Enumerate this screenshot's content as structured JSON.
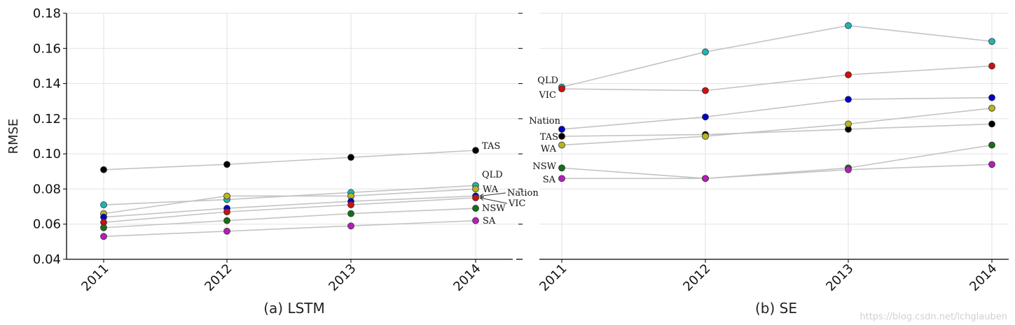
{
  "chart_data": [
    {
      "type": "line",
      "caption": "(a) LSTM",
      "ylabel": "RMSE",
      "categories": [
        "2011",
        "2012",
        "2013",
        "2014"
      ],
      "ylim": [
        0.04,
        0.18
      ],
      "yticks": [
        0.04,
        0.06,
        0.08,
        0.1,
        0.12,
        0.14,
        0.16,
        0.18
      ],
      "ytick_labels": [
        "0.04",
        "0.06",
        "0.08",
        "0.10",
        "0.12",
        "0.14",
        "0.16",
        "0.18"
      ],
      "series": [
        {
          "name": "TAS",
          "color": "#000000",
          "values": [
            0.091,
            0.094,
            0.098,
            0.102
          ]
        },
        {
          "name": "QLD",
          "color": "#1fb5b5",
          "values": [
            0.071,
            0.074,
            0.078,
            0.082
          ]
        },
        {
          "name": "WA",
          "color": "#b5b51f",
          "values": [
            0.066,
            0.076,
            0.076,
            0.08
          ]
        },
        {
          "name": "Nation",
          "color": "#0000cc",
          "values": [
            0.064,
            0.069,
            0.073,
            0.076
          ]
        },
        {
          "name": "VIC",
          "color": "#cc1010",
          "values": [
            0.061,
            0.067,
            0.071,
            0.075
          ]
        },
        {
          "name": "NSW",
          "color": "#157015",
          "values": [
            0.058,
            0.062,
            0.066,
            0.069
          ]
        },
        {
          "name": "SA",
          "color": "#b51fb5",
          "values": [
            0.053,
            0.056,
            0.059,
            0.062
          ]
        }
      ]
    },
    {
      "type": "line",
      "caption": "(b) SE",
      "categories": [
        "2011",
        "2012",
        "2013",
        "2014"
      ],
      "ylim": [
        0.04,
        0.18
      ],
      "series": [
        {
          "name": "QLD",
          "color": "#1fb5b5",
          "values": [
            0.138,
            0.158,
            0.173,
            0.164
          ]
        },
        {
          "name": "VIC",
          "color": "#cc1010",
          "values": [
            0.137,
            0.136,
            0.145,
            0.15
          ]
        },
        {
          "name": "Nation",
          "color": "#0000cc",
          "values": [
            0.114,
            0.121,
            0.131,
            0.132
          ]
        },
        {
          "name": "TAS",
          "color": "#000000",
          "values": [
            0.11,
            0.111,
            0.114,
            0.117
          ]
        },
        {
          "name": "WA",
          "color": "#b5b51f",
          "values": [
            0.105,
            0.11,
            0.117,
            0.126
          ]
        },
        {
          "name": "NSW",
          "color": "#157015",
          "values": [
            0.092,
            0.086,
            0.092,
            0.105
          ]
        },
        {
          "name": "SA",
          "color": "#b51fb5",
          "values": [
            0.086,
            0.086,
            0.091,
            0.094
          ]
        }
      ]
    }
  ],
  "watermark": "https://blog.csdn.net/lchglauben"
}
